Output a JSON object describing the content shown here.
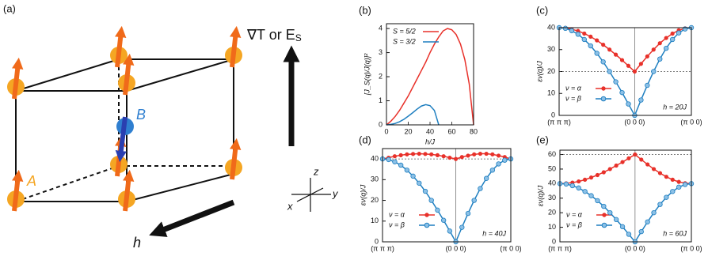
{
  "panel_a": {
    "label": "(a)",
    "field_label": "∇T or E",
    "field_label_sub": "S",
    "site_B": "B",
    "site_A": "A",
    "field_h": "h",
    "axis_x": "x",
    "axis_y": "y",
    "axis_z": "z"
  },
  "chart_data": [
    {
      "type": "line",
      "panel_label": "(b)",
      "xlabel": "h/J",
      "ylabel": "[J_S(q)/J(q)]²",
      "markers": false,
      "legend": "upper left",
      "x": [
        0,
        4,
        8,
        12,
        16,
        20,
        24,
        28,
        32,
        36,
        40,
        44,
        48,
        52,
        56,
        60,
        64,
        68,
        72,
        76,
        80
      ],
      "xlim": [
        0,
        80
      ],
      "xticks": [
        0,
        20,
        40,
        60,
        80
      ],
      "ylim": [
        0,
        4.2
      ],
      "yticks": [
        0,
        1,
        2,
        3,
        4
      ],
      "series": [
        {
          "name": "S = 5/2",
          "color": "#e8312a",
          "values": [
            0,
            0.15,
            0.35,
            0.6,
            0.9,
            1.2,
            1.55,
            1.9,
            2.25,
            2.6,
            3.0,
            3.35,
            3.65,
            3.9,
            4.0,
            3.95,
            3.75,
            3.35,
            2.7,
            1.7,
            0
          ]
        },
        {
          "name": "S = 3/2",
          "color": "#1f7fc0",
          "values": [
            0,
            0.02,
            0.06,
            0.13,
            0.23,
            0.36,
            0.5,
            0.65,
            0.78,
            0.84,
            0.8,
            0.6,
            0,
            null,
            null,
            null,
            null,
            null,
            null,
            null,
            null
          ]
        }
      ]
    },
    {
      "type": "line",
      "panel_label": "(c)",
      "ylabel": "εν(q)/J",
      "markers": true,
      "legend": "lower left",
      "annotation": "h = 20J",
      "reference_line": 20,
      "x": [
        0,
        1,
        2,
        3,
        4,
        5,
        6,
        7,
        8,
        9,
        10,
        11,
        12,
        13,
        14,
        15,
        16,
        17,
        18,
        19,
        20,
        21
      ],
      "xlim": [
        0,
        21
      ],
      "xticks": [
        {
          "value": 0,
          "label": "(π π π)"
        },
        {
          "value": 12,
          "label": "(0 0 0)"
        },
        {
          "value": 21,
          "label": "(π 0 0)"
        }
      ],
      "ylim": [
        0,
        40
      ],
      "yticks": [
        0,
        10,
        20,
        30,
        40
      ],
      "series": [
        {
          "name": "ν = α",
          "color": "#e8312a",
          "values": [
            40,
            39.9,
            39.3,
            38.5,
            37.3,
            35.9,
            34.2,
            32.2,
            30,
            27.7,
            25.2,
            22.6,
            20,
            23.5,
            26.9,
            30,
            32.9,
            35.3,
            37.3,
            38.8,
            39.7,
            40
          ]
        },
        {
          "name": "ν = β",
          "color": "#1f7fc0",
          "values": [
            40,
            39.7,
            38.6,
            37,
            34.6,
            31.7,
            28.3,
            24.4,
            20,
            15.3,
            10.4,
            5.2,
            0,
            7,
            13.7,
            20,
            25.7,
            30.6,
            34.6,
            37.6,
            39.4,
            40
          ]
        }
      ]
    },
    {
      "type": "line",
      "panel_label": "(d)",
      "ylabel": "εν(q)/J",
      "markers": true,
      "legend": "lower left",
      "annotation": "h = 40J",
      "reference_line": 40,
      "x": [
        0,
        1,
        2,
        3,
        4,
        5,
        6,
        7,
        8,
        9,
        10,
        11,
        12,
        13,
        14,
        15,
        16,
        17,
        18,
        19,
        20,
        21
      ],
      "xlim": [
        0,
        21
      ],
      "xticks": [
        {
          "value": 0,
          "label": "(π π π)"
        },
        {
          "value": 12,
          "label": "(0 0 0)"
        },
        {
          "value": 21,
          "label": "(π 0 0)"
        }
      ],
      "ylim": [
        0,
        45
      ],
      "yticks": [
        0,
        10,
        20,
        30,
        40
      ],
      "series": [
        {
          "name": "ν = α",
          "color": "#e8312a",
          "values": [
            40,
            40.6,
            41.3,
            41.8,
            42.2,
            42.4,
            42.5,
            42.4,
            42.2,
            41.8,
            41.3,
            40.6,
            40,
            40.9,
            41.6,
            42.2,
            42.5,
            42.5,
            42.2,
            41.6,
            40.9,
            40
          ]
        },
        {
          "name": "ν = β",
          "color": "#1f7fc0",
          "values": [
            40,
            39.7,
            38.6,
            37,
            34.6,
            31.7,
            28.3,
            24.4,
            20,
            15.3,
            10.4,
            5.2,
            0,
            7,
            13.7,
            20,
            25.7,
            30.6,
            34.6,
            37.6,
            39.4,
            40
          ]
        }
      ]
    },
    {
      "type": "line",
      "panel_label": "(e)",
      "ylabel": "εν(q)/J",
      "markers": true,
      "legend": "lower left",
      "annotation": "h = 60J",
      "reference_line": 60,
      "x": [
        0,
        1,
        2,
        3,
        4,
        5,
        6,
        7,
        8,
        9,
        10,
        11,
        12,
        13,
        14,
        15,
        16,
        17,
        18,
        19,
        20,
        21
      ],
      "xlim": [
        0,
        21
      ],
      "xticks": [
        {
          "value": 0,
          "label": "(π π π)"
        },
        {
          "value": 12,
          "label": "(0 0 0)"
        },
        {
          "value": 21,
          "label": "(π 0 0)"
        }
      ],
      "ylim": [
        0,
        63
      ],
      "yticks": [
        0,
        10,
        20,
        30,
        40,
        50,
        60
      ],
      "series": [
        {
          "name": "ν = α",
          "color": "#e8312a",
          "values": [
            40,
            40.2,
            40.7,
            41.5,
            42.7,
            44.2,
            45.9,
            47.8,
            50,
            52.4,
            54.8,
            57.4,
            60,
            56.5,
            53.2,
            50,
            47.2,
            44.7,
            42.7,
            41.2,
            40.3,
            40
          ]
        },
        {
          "name": "ν = β",
          "color": "#1f7fc0",
          "values": [
            40,
            39.7,
            38.6,
            37,
            34.6,
            31.7,
            28.3,
            24.4,
            20,
            15.3,
            10.4,
            5.2,
            0,
            7,
            13.7,
            20,
            25.7,
            30.6,
            34.6,
            37.6,
            39.4,
            40
          ]
        }
      ]
    }
  ]
}
